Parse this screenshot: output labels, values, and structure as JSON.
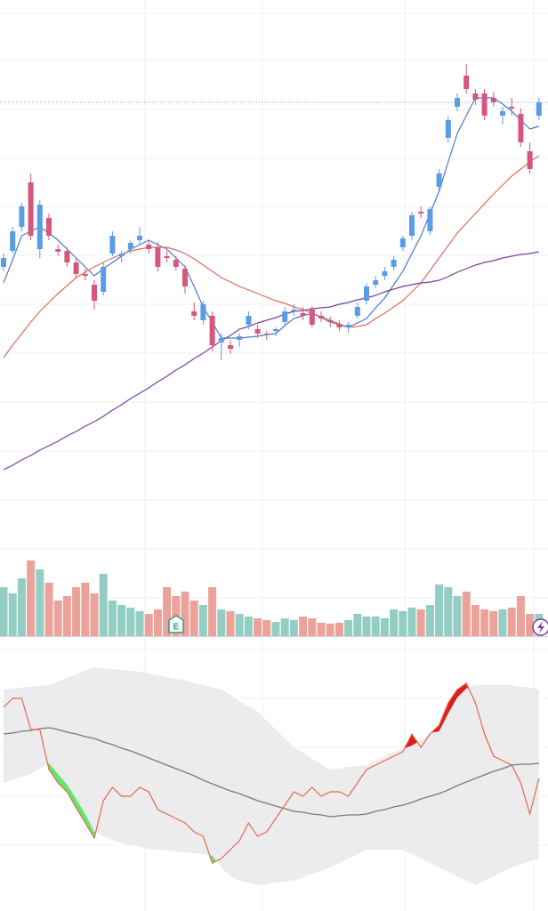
{
  "chart_data": [
    {
      "type": "candlestick",
      "ylim": [
        0,
        600
      ],
      "up_color": "#5b9ce6",
      "down_color": "#d6577e",
      "last_price_line": true,
      "open": [
        300,
        318,
        345,
        395,
        320,
        355,
        320,
        318,
        305,
        292,
        280,
        272,
        315,
        312,
        320,
        330,
        325,
        322,
        312,
        308,
        298,
        250,
        240,
        245,
        215,
        212,
        218,
        235,
        230,
        225,
        228,
        238,
        250,
        248,
        252,
        245,
        240,
        236,
        232,
        245,
        262,
        280,
        290,
        300,
        322,
        335,
        362,
        340,
        390,
        445,
        480,
        515,
        495,
        495,
        490,
        470,
        480,
        472,
        430,
        470
      ],
      "high": [
        315,
        345,
        372,
        405,
        375,
        360,
        325,
        322,
        310,
        298,
        285,
        305,
        340,
        318,
        330,
        345,
        330,
        328,
        318,
        312,
        302,
        260,
        262,
        250,
        225,
        218,
        225,
        250,
        235,
        228,
        232,
        255,
        258,
        255,
        256,
        250,
        244,
        240,
        238,
        260,
        282,
        290,
        300,
        312,
        335,
        362,
        368,
        368,
        410,
        470,
        495,
        528,
        500,
        500,
        497,
        480,
        490,
        478,
        440,
        490
      ],
      "low": [
        295,
        315,
        340,
        330,
        310,
        330,
        312,
        300,
        288,
        285,
        252,
        268,
        312,
        305,
        315,
        325,
        315,
        295,
        305,
        296,
        270,
        240,
        235,
        205,
        195,
        202,
        210,
        230,
        220,
        218,
        222,
        235,
        245,
        240,
        232,
        238,
        232,
        228,
        226,
        242,
        258,
        276,
        285,
        296,
        318,
        330,
        355,
        336,
        385,
        440,
        475,
        495,
        482,
        465,
        480,
        460,
        470,
        435,
        405,
        465
      ],
      "close": [
        310,
        340,
        368,
        335,
        370,
        335,
        317,
        305,
        292,
        290,
        262,
        300,
        335,
        315,
        327,
        335,
        320,
        300,
        310,
        300,
        278,
        245,
        258,
        212,
        220,
        208,
        222,
        245,
        225,
        224,
        230,
        250,
        252,
        245,
        235,
        242,
        238,
        232,
        235,
        255,
        278,
        285,
        295,
        308,
        332,
        358,
        360,
        365,
        405,
        465,
        490,
        500,
        488,
        470,
        485,
        475,
        478,
        440,
        410,
        485
      ],
      "series": [
        {
          "color": "#4a78d0",
          "values": [
            282,
            308,
            335,
            340,
            345,
            338,
            330,
            320,
            310,
            300,
            290,
            298,
            305,
            312,
            320,
            325,
            330,
            325,
            320,
            310,
            300,
            278,
            255,
            238,
            220,
            220,
            220,
            221,
            222,
            224,
            225,
            234,
            242,
            245,
            248,
            243,
            238,
            235,
            232,
            237,
            242,
            254,
            265,
            280,
            295,
            315,
            335,
            360,
            385,
            418,
            450,
            470,
            490,
            490,
            490,
            483,
            475,
            465,
            455,
            458
          ]
        },
        {
          "color": "#e06a5a",
          "values": [
            198,
            212,
            225,
            238,
            250,
            260,
            270,
            279,
            288,
            294,
            300,
            305,
            310,
            314,
            318,
            320,
            322,
            322,
            322,
            319,
            315,
            309,
            302,
            295,
            288,
            283,
            278,
            274,
            270,
            266,
            262,
            259,
            255,
            252,
            248,
            244,
            240,
            236,
            232,
            233,
            235,
            242,
            248,
            255,
            262,
            272,
            282,
            296,
            310,
            324,
            338,
            349,
            360,
            371,
            382,
            392,
            402,
            410,
            418,
            425
          ]
        },
        {
          "color": "#7b3f9e",
          "values": [
            72,
            77,
            83,
            88,
            94,
            99,
            104,
            110,
            115,
            121,
            126,
            132,
            139,
            145,
            152,
            158,
            164,
            171,
            177,
            184,
            190,
            197,
            203,
            210,
            217,
            223,
            230,
            233,
            237,
            240,
            243,
            247,
            250,
            251,
            253,
            254,
            255,
            258,
            260,
            263,
            265,
            268,
            272,
            275,
            278,
            280,
            282,
            283,
            285,
            289,
            294,
            298,
            302,
            305,
            307,
            310,
            312,
            314,
            315,
            317
          ]
        }
      ]
    },
    {
      "type": "bar",
      "ylim": [
        0,
        100
      ],
      "up_color": "#93cdc3",
      "down_color": "#eba29a",
      "event_label": "E",
      "values": [
        55,
        48,
        65,
        85,
        75,
        60,
        40,
        45,
        55,
        60,
        48,
        70,
        40,
        35,
        32,
        28,
        25,
        30,
        55,
        45,
        50,
        40,
        35,
        55,
        30,
        28,
        25,
        22,
        20,
        18,
        16,
        20,
        18,
        22,
        20,
        15,
        14,
        15,
        18,
        25,
        22,
        22,
        20,
        30,
        28,
        32,
        30,
        35,
        58,
        55,
        45,
        50,
        35,
        30,
        28,
        30,
        32,
        45,
        25,
        25
      ]
    },
    {
      "type": "band",
      "ylim": [
        0,
        300
      ],
      "band_color": "#ececee",
      "below_color": "#5ee86a",
      "above_color": "#d62020",
      "series": [
        {
          "color": "#e8674a",
          "values": [
            215,
            225,
            225,
            190,
            190,
            145,
            130,
            120,
            102,
            85,
            68,
            110,
            125,
            115,
            115,
            125,
            120,
            100,
            95,
            90,
            85,
            75,
            70,
            40,
            45,
            55,
            65,
            85,
            70,
            75,
            90,
            105,
            120,
            115,
            125,
            115,
            120,
            120,
            115,
            130,
            145,
            150,
            155,
            160,
            165,
            185,
            170,
            185,
            195,
            220,
            235,
            242,
            220,
            185,
            160,
            155,
            150,
            130,
            95,
            135
          ]
        },
        {
          "color": "#ececee",
          "values": [
            235,
            236,
            237,
            238,
            239,
            240,
            244,
            248,
            252,
            256,
            260,
            259,
            258,
            257,
            256,
            255,
            253,
            251,
            249,
            247,
            245,
            242,
            240,
            237,
            235,
            229,
            222,
            216,
            210,
            200,
            190,
            180,
            170,
            164,
            157,
            151,
            145,
            146,
            148,
            149,
            150,
            155,
            160,
            165,
            168,
            172,
            178,
            186,
            188,
            208,
            226,
            236,
            240,
            240,
            240,
            240,
            240,
            238,
            237,
            235
          ]
        },
        {
          "color": "#ececee",
          "values": [
            130,
            133,
            137,
            140,
            146,
            152,
            140,
            128,
            112,
            95,
            75,
            70,
            66,
            62,
            60,
            58,
            56,
            55,
            54,
            53,
            52,
            51,
            50,
            48,
            35,
            25,
            20,
            18,
            15,
            16,
            18,
            19,
            20,
            24,
            28,
            31,
            35,
            40,
            45,
            50,
            55,
            55,
            55,
            55,
            55,
            50,
            45,
            40,
            35,
            30,
            25,
            20,
            15,
            20,
            25,
            30,
            35,
            38,
            42,
            45
          ]
        },
        {
          "color": "#7a7a7a",
          "values": [
            185,
            186,
            188,
            189,
            191,
            192,
            190,
            187,
            185,
            182,
            180,
            176,
            173,
            169,
            166,
            162,
            158,
            154,
            150,
            146,
            142,
            138,
            133,
            129,
            125,
            121,
            118,
            114,
            110,
            107,
            104,
            101,
            98,
            97,
            95,
            94,
            92,
            93,
            94,
            94,
            95,
            98,
            100,
            103,
            105,
            108,
            112,
            115,
            118,
            122,
            127,
            131,
            135,
            139,
            143,
            146,
            150,
            151,
            151,
            152
          ]
        }
      ]
    }
  ]
}
